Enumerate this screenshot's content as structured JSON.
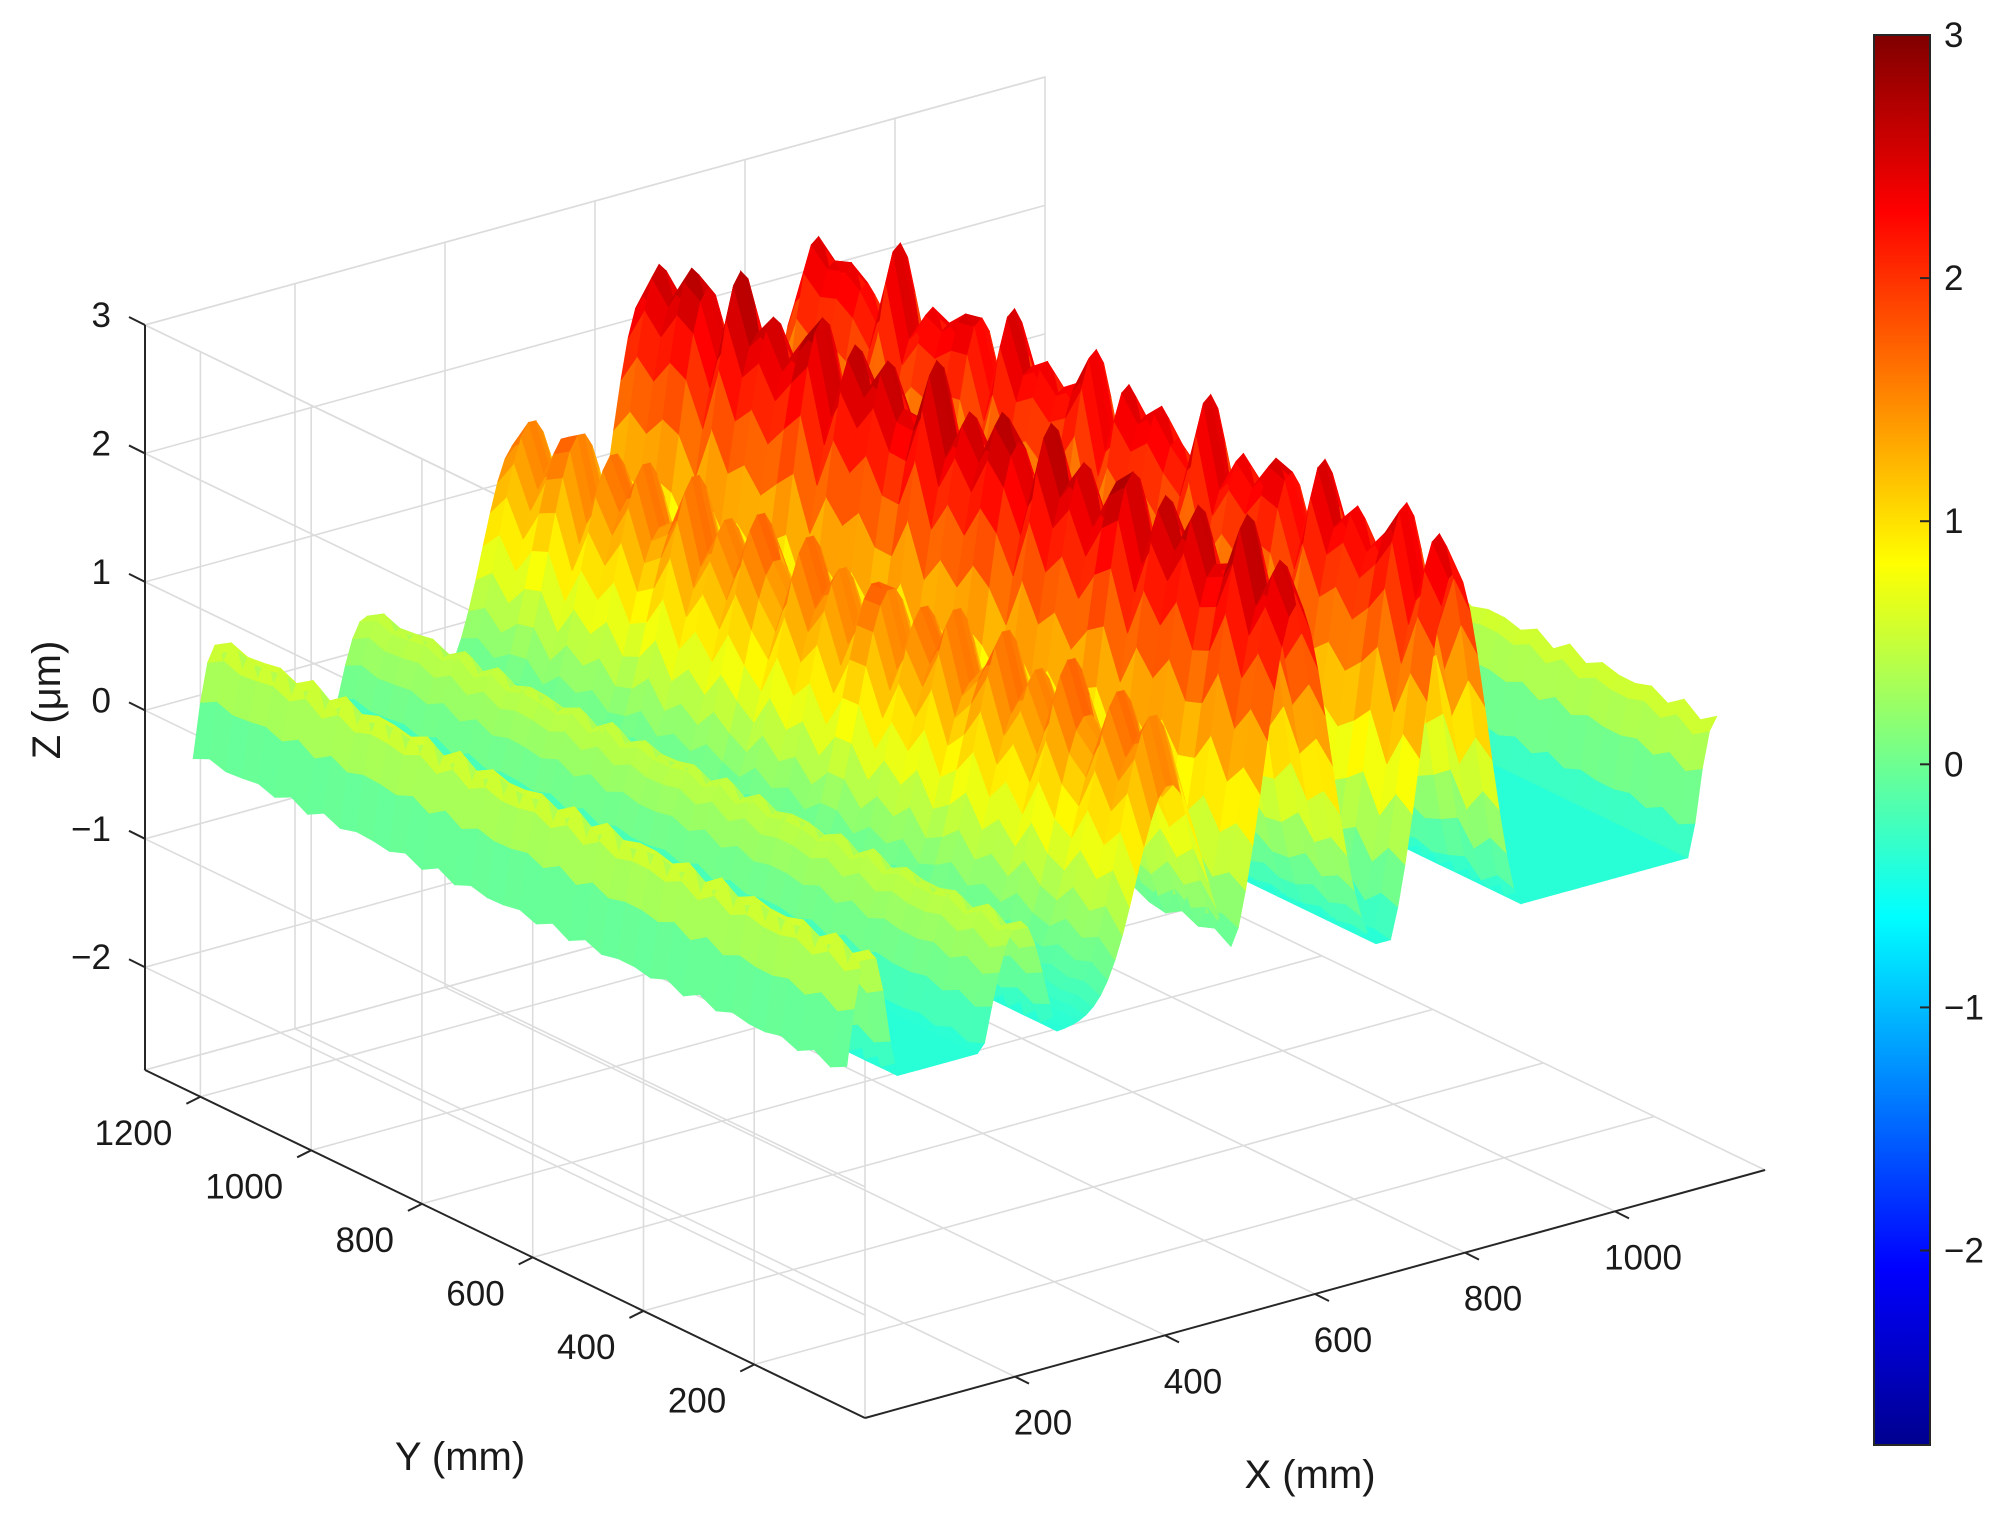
{
  "chart_data": {
    "type": "surface",
    "title": "",
    "xlabel": "X (mm)",
    "ylabel": "Y (mm)",
    "zlabel": "Z (μm)",
    "x_ticks": [
      "200",
      "400",
      "600",
      "800",
      "1000"
    ],
    "y_ticks": [
      "200",
      "400",
      "600",
      "800",
      "1000",
      "1200"
    ],
    "z_ticks": [
      "−2",
      "−1",
      "0",
      "1",
      "2",
      "3"
    ],
    "colorbar_ticks": [
      "−2",
      "−1",
      "0",
      "1",
      "2",
      "3"
    ],
    "xlim": [
      0,
      1200
    ],
    "ylim": [
      0,
      1300
    ],
    "zlim": [
      -2.8,
      3
    ],
    "clim": [
      -2.8,
      3
    ],
    "colormap": "jet",
    "grid": true,
    "colorbar": "right",
    "ridges": [
      {
        "x_center": 50,
        "z_peak": 0.6,
        "z_floor": -2.7
      },
      {
        "x_center": 250,
        "z_peak": 0.5,
        "z_floor": -1.5
      },
      {
        "x_center": 450,
        "z_peak": 1.6,
        "z_floor": -0.4
      },
      {
        "x_center": 620,
        "z_peak": 2.6,
        "z_floor": -0.6
      },
      {
        "x_center": 830,
        "z_peak": 2.4,
        "z_floor": -0.9
      },
      {
        "x_center": 1180,
        "z_peak": 0.6,
        "z_floor": -2.6
      }
    ]
  }
}
